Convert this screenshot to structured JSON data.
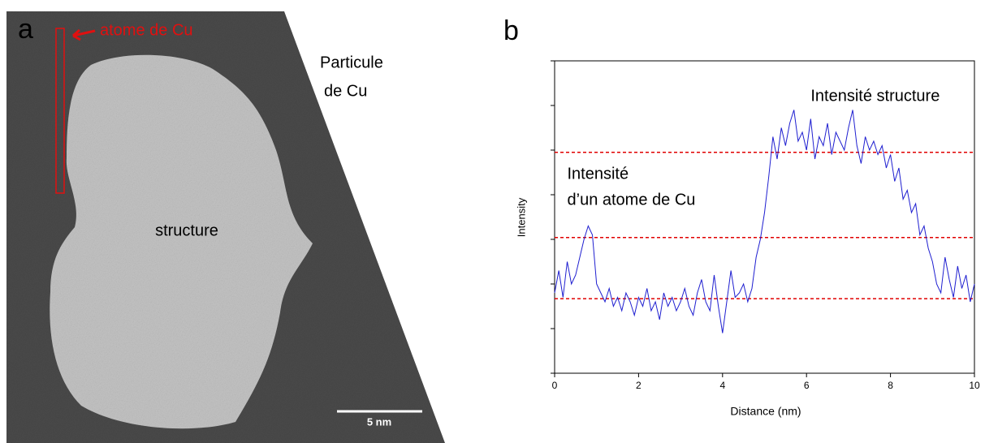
{
  "panel_a": {
    "label": "a",
    "arrow_text": "atome de Cu",
    "particle_text": [
      "Particule",
      "de Cu"
    ],
    "center_text": "structure",
    "scale_bar": "5 nm"
  },
  "chart_data": {
    "type": "line",
    "panel_label": "b",
    "xlabel": "Distance (nm)",
    "ylabel": "Intensity",
    "xlim": [
      0,
      10
    ],
    "xticks": [
      0,
      2,
      4,
      6,
      8,
      10
    ],
    "ylim": [
      0,
      7
    ],
    "yticks": [
      0,
      1,
      2,
      3,
      4,
      5,
      6,
      7
    ],
    "x": [
      0,
      0.1,
      0.2,
      0.3,
      0.4,
      0.5,
      0.6,
      0.7,
      0.8,
      0.9,
      1,
      1.1,
      1.2,
      1.3,
      1.4,
      1.5,
      1.6,
      1.7,
      1.8,
      1.9,
      2,
      2.1,
      2.2,
      2.3,
      2.4,
      2.5,
      2.6,
      2.7,
      2.8,
      2.9,
      3,
      3.1,
      3.2,
      3.3,
      3.4,
      3.5,
      3.6,
      3.7,
      3.8,
      3.9,
      4,
      4.1,
      4.2,
      4.3,
      4.4,
      4.5,
      4.6,
      4.7,
      4.8,
      4.9,
      5,
      5.1,
      5.2,
      5.3,
      5.4,
      5.5,
      5.6,
      5.7,
      5.8,
      5.9,
      6,
      6.1,
      6.2,
      6.3,
      6.4,
      6.5,
      6.6,
      6.7,
      6.8,
      6.9,
      7,
      7.1,
      7.2,
      7.3,
      7.4,
      7.5,
      7.6,
      7.7,
      7.8,
      7.9,
      8,
      8.1,
      8.2,
      8.3,
      8.4,
      8.5,
      8.6,
      8.7,
      8.8,
      8.9,
      9,
      9.1,
      9.2,
      9.3,
      9.4,
      9.5,
      9.6,
      9.7,
      9.8,
      9.9,
      10
    ],
    "series": [
      {
        "color": "#1f1fd0",
        "values": [
          1.8,
          2.3,
          1.7,
          2.5,
          2.0,
          2.2,
          2.6,
          3.0,
          3.3,
          3.1,
          2.0,
          1.8,
          1.6,
          1.9,
          1.5,
          1.7,
          1.4,
          1.8,
          1.6,
          1.3,
          1.7,
          1.5,
          1.9,
          1.4,
          1.6,
          1.2,
          1.8,
          1.5,
          1.7,
          1.4,
          1.6,
          1.9,
          1.5,
          1.3,
          1.8,
          2.1,
          1.6,
          1.4,
          2.2,
          1.5,
          0.9,
          1.6,
          2.3,
          1.7,
          1.8,
          2.0,
          1.6,
          1.9,
          2.6,
          3.0,
          3.6,
          4.4,
          5.3,
          4.8,
          5.5,
          5.1,
          5.6,
          5.9,
          5.2,
          5.4,
          5.0,
          5.7,
          4.8,
          5.3,
          5.1,
          5.6,
          4.9,
          5.4,
          5.2,
          5.0,
          5.5,
          5.9,
          5.1,
          4.7,
          5.3,
          5.0,
          5.2,
          4.9,
          5.1,
          4.6,
          4.9,
          4.3,
          4.6,
          3.9,
          4.1,
          3.6,
          3.8,
          3.1,
          3.3,
          2.8,
          2.5,
          2.0,
          1.8,
          2.6,
          2.1,
          1.7,
          2.4,
          1.9,
          2.2,
          1.6,
          2.0
        ]
      }
    ],
    "reference_lines": {
      "color": "#e00000",
      "dashed": true,
      "values": [
        4.95,
        3.04,
        1.67
      ]
    },
    "annotations": [
      {
        "lines": [
          "Intensité structure"
        ],
        "x": 6.1,
        "y": 6.2
      },
      {
        "lines": [
          "Intensité",
          "d’un atome de Cu"
        ],
        "x": 0.3,
        "y": 4.45
      }
    ]
  }
}
